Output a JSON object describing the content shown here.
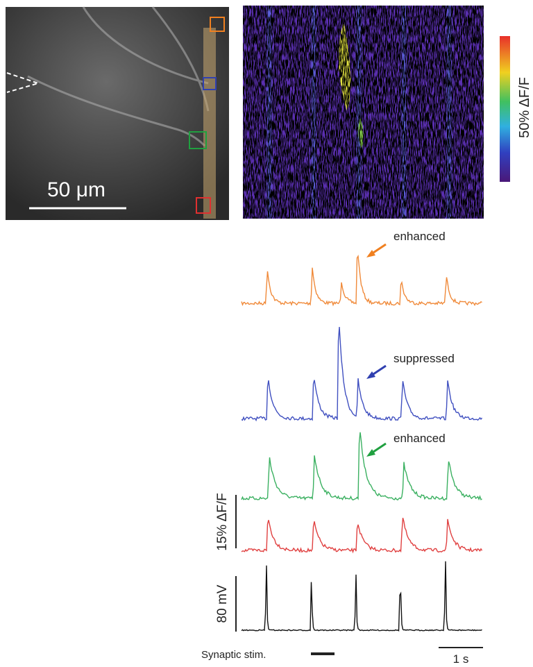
{
  "image_panel": {
    "scale_bar_label": "50 μm"
  },
  "colorbar": {
    "label": "50% ΔF/F"
  },
  "traces": [
    {
      "annotation": "enhanced"
    },
    {
      "annotation": "suppressed"
    },
    {
      "annotation": "enhanced"
    }
  ],
  "scale_bars": {
    "fluorescence": "15% ΔF/F",
    "voltage": "80 mV",
    "time": "1 s"
  },
  "stimulus_label": "Synaptic stim."
}
